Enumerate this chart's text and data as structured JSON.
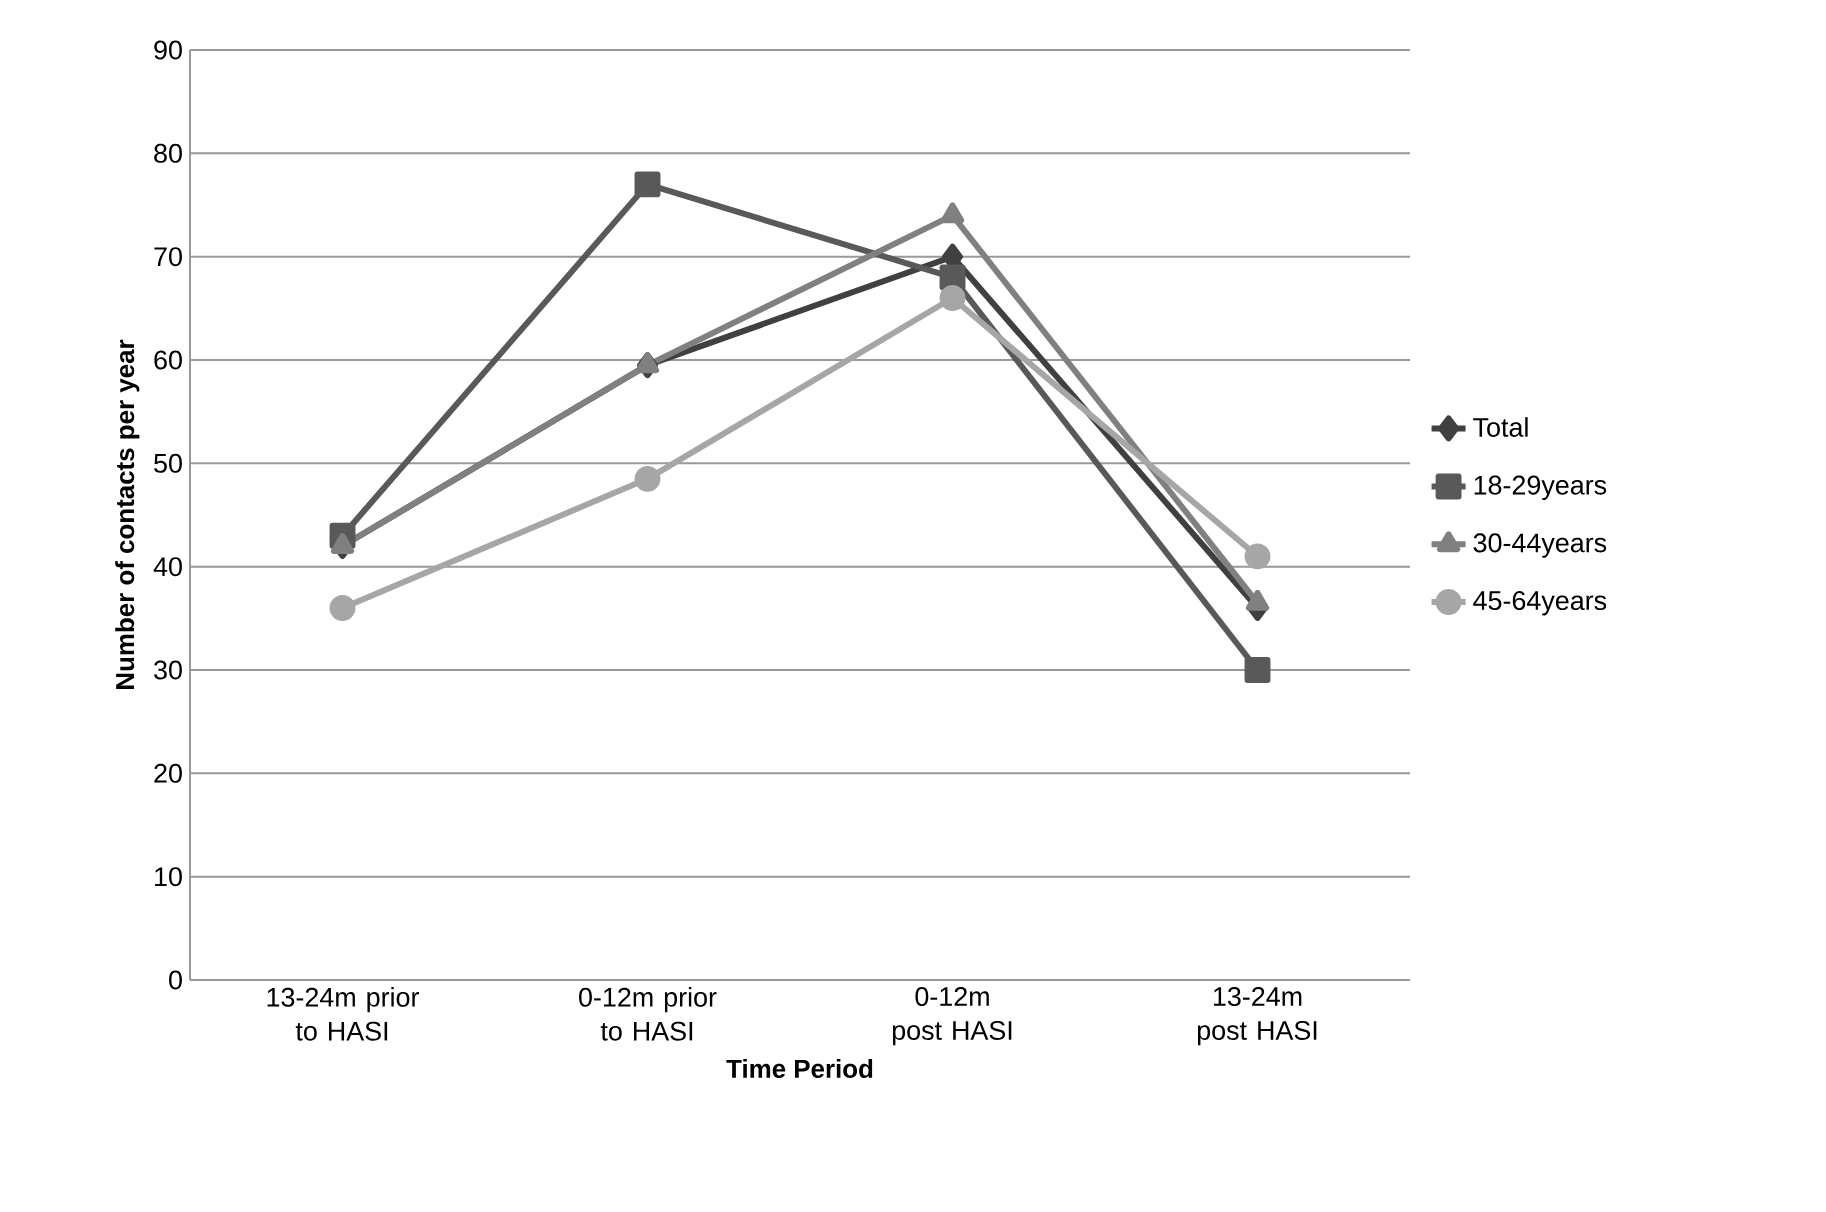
{
  "chart_data": {
    "type": "line",
    "xlabel": "Time Period",
    "ylabel": "Number of contacts per year",
    "categories": [
      "13-24m prior to HASI",
      "0-12m prior to HASI",
      "0-12m post HASI",
      "13-24m post HASI"
    ],
    "series": [
      {
        "name": "Total",
        "color": "#404040",
        "marker": "diamond",
        "values": [
          42,
          59.5,
          70,
          36
        ]
      },
      {
        "name": "18-29years",
        "color": "#595959",
        "marker": "square",
        "values": [
          43,
          77,
          68,
          30
        ]
      },
      {
        "name": "30-44years",
        "color": "#808080",
        "marker": "triangle",
        "values": [
          42,
          59.5,
          74,
          36.5
        ]
      },
      {
        "name": "45-64years",
        "color": "#a6a6a6",
        "marker": "circle",
        "values": [
          36,
          48.5,
          66,
          41
        ]
      }
    ],
    "ylim": [
      0,
      90
    ],
    "yticks": [
      0,
      10,
      20,
      30,
      40,
      50,
      60,
      70,
      80,
      90
    ],
    "grid": "y",
    "legend": "right",
    "line_style": "solid"
  }
}
